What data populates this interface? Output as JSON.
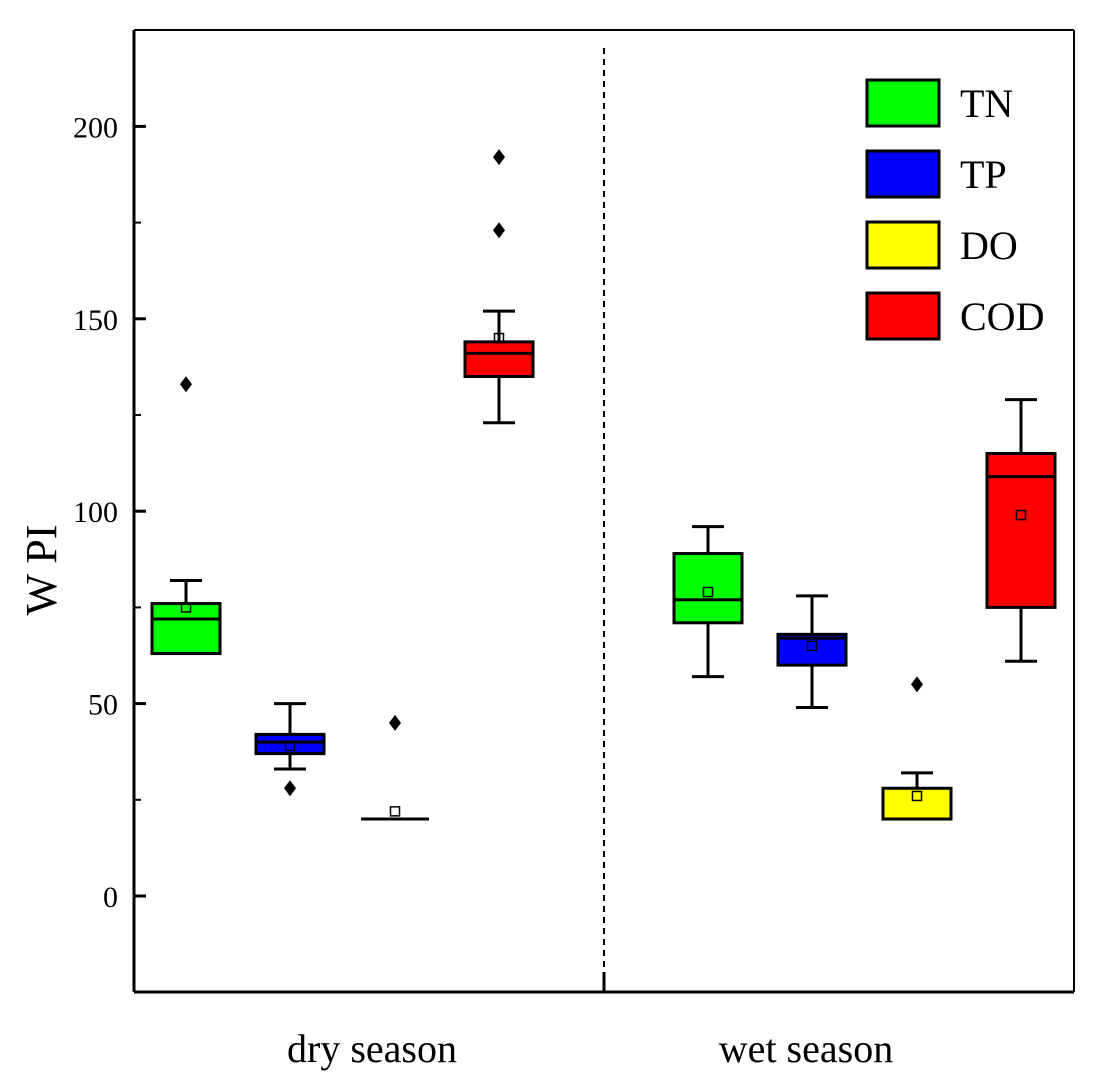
{
  "chart_data": {
    "type": "box",
    "ylabel": "W PI",
    "ylim": [
      -25,
      225
    ],
    "yticks": [
      0,
      50,
      100,
      150,
      200
    ],
    "y_minor_ticks": [
      25,
      75,
      125,
      175
    ],
    "groups": [
      "dry season",
      "wet season"
    ],
    "divider": "dashed vertical line between seasons",
    "legend": {
      "placement": "top-right",
      "entries": [
        {
          "label": "TN",
          "color": "#00ff00"
        },
        {
          "label": "TP",
          "color": "#0000ff"
        },
        {
          "label": "DO",
          "color": "#ffff00"
        },
        {
          "label": "COD",
          "color": "#ff0000"
        }
      ]
    },
    "boxes": [
      {
        "group": "dry season",
        "series": "TN",
        "color": "#00ff00",
        "whisker_low": 63,
        "q1": 63,
        "median": 72,
        "q3": 76,
        "whisker_high": 82,
        "mean": 75,
        "outliers": [
          133
        ]
      },
      {
        "group": "dry season",
        "series": "TP",
        "color": "#0000ff",
        "whisker_low": 33,
        "q1": 37,
        "median": 40,
        "q3": 42,
        "whisker_high": 50,
        "mean": 39,
        "outliers": [
          28
        ]
      },
      {
        "group": "dry season",
        "series": "DO",
        "color": "#ffff00",
        "whisker_low": 20,
        "q1": 20,
        "median": 20,
        "q3": 20,
        "whisker_high": 20,
        "mean": 22,
        "outliers": [
          45
        ]
      },
      {
        "group": "dry season",
        "series": "COD",
        "color": "#ff0000",
        "whisker_low": 123,
        "q1": 135,
        "median": 141,
        "q3": 144,
        "whisker_high": 152,
        "mean": 145,
        "outliers": [
          173,
          192
        ]
      },
      {
        "group": "wet season",
        "series": "TN",
        "color": "#00ff00",
        "whisker_low": 57,
        "q1": 71,
        "median": 77,
        "q3": 89,
        "whisker_high": 96,
        "mean": 79,
        "outliers": []
      },
      {
        "group": "wet season",
        "series": "TP",
        "color": "#0000ff",
        "whisker_low": 49,
        "q1": 60,
        "median": 67,
        "q3": 68,
        "whisker_high": 78,
        "mean": 65,
        "outliers": []
      },
      {
        "group": "wet season",
        "series": "DO",
        "color": "#ffff00",
        "whisker_low": 20,
        "q1": 20,
        "median": 20,
        "q3": 28,
        "whisker_high": 32,
        "mean": 26,
        "outliers": [
          55
        ]
      },
      {
        "group": "wet season",
        "series": "COD",
        "color": "#ff0000",
        "whisker_low": 61,
        "q1": 75,
        "median": 109,
        "q3": 115,
        "whisker_high": 129,
        "mean": 99,
        "outliers": []
      }
    ]
  }
}
